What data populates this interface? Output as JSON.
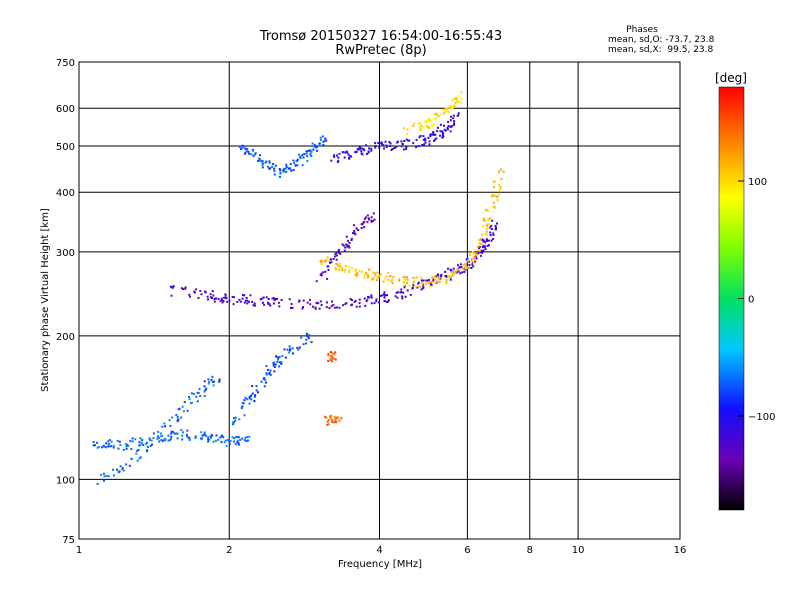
{
  "chart_data": {
    "type": "scatter",
    "title": "Tromsø 20150327 16:54:00-16:55:43",
    "subtitle": "RwPretec (8p)",
    "xlabel": "Frequency [MHz]",
    "ylabel": "Stationary phase Virtual Height [km]",
    "x_scale": "log",
    "y_scale": "log",
    "xlim": [
      1,
      16
    ],
    "ylim": [
      75,
      750
    ],
    "x_ticks": [
      1,
      2,
      4,
      6,
      8,
      10,
      16
    ],
    "y_ticks": [
      75,
      100,
      200,
      300,
      400,
      500,
      600,
      750
    ],
    "x_ticklabels": [
      "1",
      "2",
      "4",
      "6",
      "8",
      "10",
      "16"
    ],
    "y_ticklabels": [
      "75",
      "100",
      "200",
      "300",
      "400",
      "500",
      "600",
      "750"
    ],
    "grid": true,
    "stats": {
      "heading": "Phases",
      "o_line": "mean, sd,O: -73.7, 23.8",
      "x_line": "mean, sd,X:  99.5, 23.8"
    },
    "colorbar": {
      "label": "[deg]",
      "range": [
        -180,
        180
      ],
      "ticks": [
        100,
        0,
        -100
      ],
      "ticklabels": [
        "100",
        "0",
        "−100"
      ]
    },
    "traces": [
      {
        "x": [
          1.05,
          1.2,
          1.4,
          1.6,
          1.8,
          2.0,
          2.2
        ],
        "y": [
          120,
          118,
          122,
          125,
          123,
          120,
          124
        ],
        "phase": -70
      },
      {
        "x": [
          2.0,
          2.2,
          2.4,
          2.6,
          2.9
        ],
        "y": [
          130,
          150,
          170,
          185,
          200
        ],
        "phase": -75
      },
      {
        "x": [
          1.1,
          1.3,
          1.5,
          1.7,
          1.9
        ],
        "y": [
          100,
          112,
          130,
          150,
          165
        ],
        "phase": -72
      },
      {
        "x": [
          1.5,
          1.8,
          2.0,
          2.3,
          2.7,
          3.2,
          3.8,
          4.3,
          4.8,
          5.3,
          5.8,
          6.2,
          6.5,
          6.8
        ],
        "y": [
          250,
          245,
          240,
          238,
          235,
          232,
          238,
          245,
          255,
          265,
          278,
          292,
          315,
          345
        ],
        "phase": -120
      },
      {
        "x": [
          3.0,
          3.4,
          3.8,
          4.2,
          4.8,
          5.5,
          6.0,
          6.4,
          6.7,
          7.0
        ],
        "y": [
          290,
          280,
          270,
          265,
          260,
          265,
          285,
          320,
          380,
          450
        ],
        "phase": 110
      },
      {
        "x": [
          2.1,
          2.3,
          2.5,
          2.7,
          2.9,
          3.1
        ],
        "y": [
          500,
          470,
          440,
          460,
          490,
          520
        ],
        "phase": -75
      },
      {
        "x": [
          3.2,
          3.6,
          4.0,
          4.5,
          5.0,
          5.4,
          5.7
        ],
        "y": [
          470,
          490,
          500,
          505,
          520,
          545,
          580
        ],
        "phase": -110
      },
      {
        "x": [
          4.5,
          5.0,
          5.5,
          5.8
        ],
        "y": [
          540,
          560,
          600,
          640
        ],
        "phase": 100
      },
      {
        "x": [
          3.0,
          3.3,
          3.6,
          3.9
        ],
        "y": [
          260,
          300,
          340,
          360
        ],
        "phase": -125
      },
      {
        "x": [
          3.1,
          3.3
        ],
        "y": [
          134,
          132
        ],
        "phase": 140
      },
      {
        "x": [
          3.2
        ],
        "y": [
          182
        ],
        "phase": 150
      }
    ]
  }
}
